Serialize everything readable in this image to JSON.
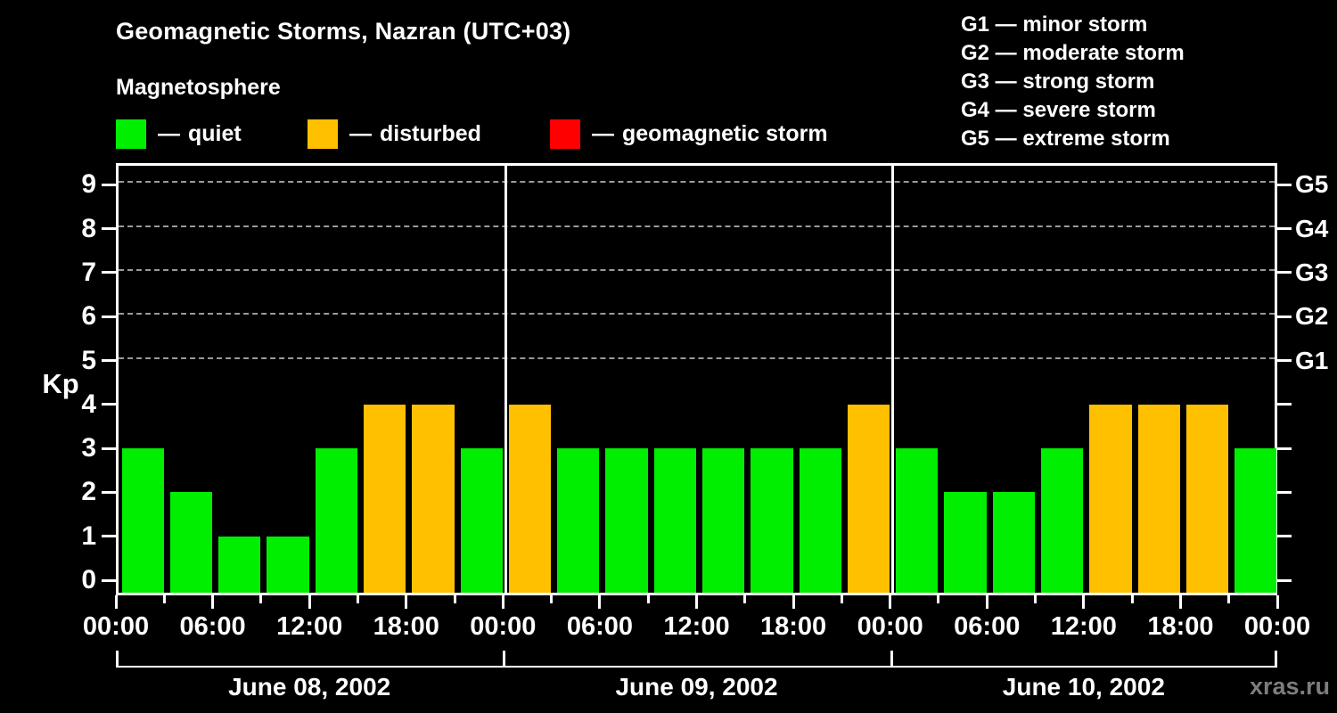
{
  "title": "Geomagnetic Storms, Nazran (UTC+03)",
  "subtitle": "Magnetosphere",
  "legend": {
    "dash": "—",
    "items": [
      {
        "name": "quiet",
        "label": "quiet",
        "color": "#00ee00"
      },
      {
        "name": "disturbed",
        "label": "disturbed",
        "color": "#ffc000"
      },
      {
        "name": "storm",
        "label": "geomagnetic storm",
        "color": "#ff0000"
      }
    ]
  },
  "storm_scale": {
    "items": [
      {
        "code": "G1",
        "desc": "minor storm"
      },
      {
        "code": "G2",
        "desc": "moderate storm"
      },
      {
        "code": "G3",
        "desc": "strong storm"
      },
      {
        "code": "G4",
        "desc": "severe storm"
      },
      {
        "code": "G5",
        "desc": "extreme storm"
      }
    ],
    "dash": "—"
  },
  "watermark": "xras.ru",
  "chart_data": {
    "type": "bar",
    "title": "Geomagnetic Storms, Nazran (UTC+03)",
    "ylabel": "Kp",
    "ylim": [
      -0.4,
      9.45
    ],
    "yticks": [
      0,
      1,
      2,
      3,
      4,
      5,
      6,
      7,
      8,
      9
    ],
    "grid_levels": [
      5,
      6,
      7,
      8,
      9
    ],
    "grid_on": true,
    "right_axis_labels": [
      {
        "level": 5,
        "label": "G1"
      },
      {
        "level": 6,
        "label": "G2"
      },
      {
        "level": 7,
        "label": "G3"
      },
      {
        "level": 8,
        "label": "G4"
      },
      {
        "level": 9,
        "label": "G5"
      }
    ],
    "time_tick_labels": [
      "00:00",
      "06:00",
      "12:00",
      "18:00"
    ],
    "bar_interval_hours": 3,
    "bars_per_day": 8,
    "status_colors": {
      "quiet": "#00ee00",
      "disturbed": "#ffc000",
      "storm": "#ff0000"
    },
    "days": [
      {
        "date": "June 08, 2002",
        "kp": [
          3,
          2,
          1,
          1,
          3,
          4,
          4,
          3
        ],
        "status": [
          "quiet",
          "quiet",
          "quiet",
          "quiet",
          "quiet",
          "disturbed",
          "disturbed",
          "quiet"
        ]
      },
      {
        "date": "June 09, 2002",
        "kp": [
          4,
          3,
          3,
          3,
          3,
          3,
          3,
          4
        ],
        "status": [
          "disturbed",
          "quiet",
          "quiet",
          "quiet",
          "quiet",
          "quiet",
          "quiet",
          "disturbed"
        ]
      },
      {
        "date": "June 10, 2002",
        "kp": [
          3,
          2,
          2,
          3,
          4,
          4,
          4,
          3
        ],
        "status": [
          "quiet",
          "quiet",
          "quiet",
          "quiet",
          "disturbed",
          "disturbed",
          "disturbed",
          "quiet"
        ]
      }
    ]
  }
}
